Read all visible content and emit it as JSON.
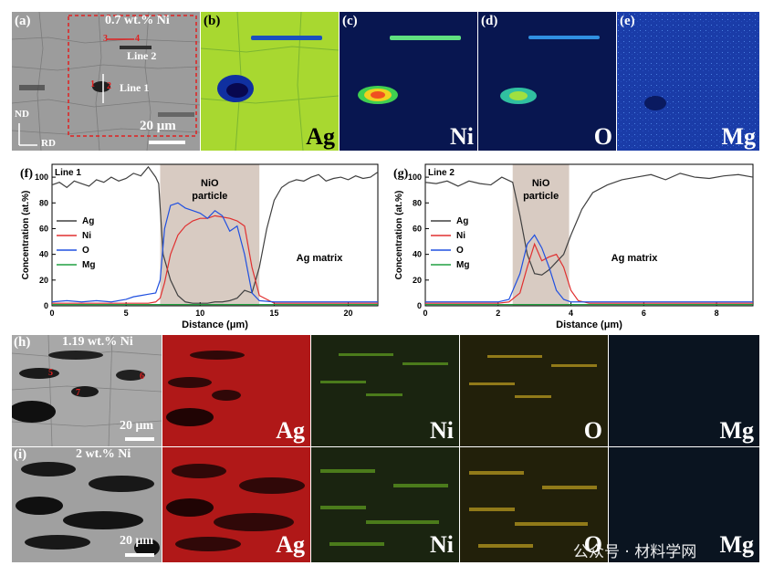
{
  "panel_a": {
    "label": "(a)",
    "composition": "0.7 wt.% Ni",
    "line1": "Line 1",
    "line2": "Line 2",
    "line2_markers": [
      "3",
      "4"
    ],
    "line1_markers": [
      "1",
      "2"
    ],
    "scalebar": "20 μm",
    "axis_nd": "ND",
    "axis_rd": "RD",
    "colors": {
      "bg": "#9c9c9c",
      "box": "#e02020"
    }
  },
  "panel_b": {
    "label": "(b)",
    "element": "Ag",
    "colors": {
      "bg": "#a8d830",
      "text": "#000000"
    }
  },
  "panel_c": {
    "label": "(c)",
    "element": "Ni",
    "colors": {
      "bg": "#081650",
      "text": "#ffffff"
    }
  },
  "panel_d": {
    "label": "(d)",
    "element": "O",
    "colors": {
      "bg": "#081650",
      "text": "#ffffff"
    }
  },
  "panel_e": {
    "label": "(e)",
    "element": "Mg",
    "colors": {
      "bg": "#1a3ca8",
      "text": "#ffffff"
    }
  },
  "panel_h": {
    "label": "(h)",
    "composition": "1.19 wt.% Ni",
    "markers": [
      "5",
      "6",
      "7"
    ],
    "scalebar": "20 μm",
    "maps": [
      "Ag",
      "Ni",
      "O",
      "Mg"
    ]
  },
  "panel_i": {
    "label": "(i)",
    "composition": "2 wt.% Ni",
    "scalebar": "20 μm",
    "maps": [
      "Ag",
      "Ni",
      "O",
      "Mg"
    ]
  },
  "map_colors": {
    "Ag": "#b01818",
    "Ni": "#2a3a10",
    "O": "#3a3008",
    "Mg": "#0a1420"
  },
  "watermark": "公众号 · 材料学网",
  "chart_data": [
    {
      "label": "(f)",
      "line_label": "Line 1",
      "type": "line",
      "xlabel": "Distance (μm)",
      "ylabel": "Concentration (at.%)",
      "xlim": [
        0,
        22
      ],
      "ylim": [
        0,
        110
      ],
      "xticks": [
        0,
        5,
        10,
        15,
        20
      ],
      "yticks": [
        0,
        20,
        40,
        60,
        80,
        100
      ],
      "legend": [
        "Ag",
        "Ni",
        "O",
        "Mg"
      ],
      "band": {
        "x0": 7.3,
        "x1": 14.0
      },
      "annotations": {
        "band": [
          "NiO",
          "particle"
        ],
        "matrix": "Ag matrix"
      },
      "series": [
        {
          "name": "Ag",
          "color": "#404040",
          "x": [
            0,
            0.5,
            1,
            1.5,
            2,
            2.5,
            3,
            3.5,
            4,
            4.5,
            5,
            5.5,
            6,
            6.5,
            7,
            7.2,
            7.5,
            8,
            8.5,
            9,
            9.5,
            10,
            10.5,
            11,
            11.5,
            12,
            12.5,
            13,
            13.5,
            14,
            14.5,
            15,
            15.5,
            16,
            16.5,
            17,
            17.5,
            18,
            18.5,
            19,
            19.5,
            20,
            20.5,
            21,
            21.5,
            22
          ],
          "y": [
            94,
            96,
            92,
            97,
            95,
            93,
            98,
            96,
            100,
            97,
            99,
            103,
            101,
            108,
            100,
            95,
            40,
            20,
            8,
            3,
            2,
            2,
            2,
            3,
            3,
            4,
            6,
            12,
            10,
            30,
            60,
            82,
            92,
            96,
            98,
            97,
            100,
            102,
            97,
            99,
            100,
            98,
            101,
            99,
            100,
            104
          ]
        },
        {
          "name": "Ni",
          "color": "#e03030",
          "x": [
            0,
            1,
            2,
            3,
            4,
            5,
            6,
            6.5,
            7,
            7.3,
            7.6,
            8,
            8.5,
            9,
            9.5,
            10,
            10.5,
            11,
            11.5,
            12,
            12.5,
            13,
            13.5,
            14,
            15,
            16,
            17,
            18,
            19,
            20,
            21,
            22
          ],
          "y": [
            2,
            2,
            2,
            2,
            2,
            2,
            2,
            2,
            3,
            6,
            18,
            40,
            55,
            62,
            66,
            68,
            68,
            70,
            69,
            68,
            66,
            62,
            30,
            8,
            2,
            2,
            2,
            2,
            2,
            2,
            2,
            2
          ]
        },
        {
          "name": "O",
          "color": "#2050e0",
          "x": [
            0,
            1,
            2,
            3,
            4,
            5,
            5.5,
            6,
            6.5,
            7,
            7.3,
            7.6,
            8,
            8.5,
            9,
            9.5,
            10,
            10.5,
            11,
            11.5,
            12,
            12.5,
            13,
            13.5,
            14,
            15,
            16,
            17,
            18,
            19,
            20,
            21,
            22
          ],
          "y": [
            3,
            4,
            3,
            4,
            3,
            5,
            7,
            8,
            9,
            10,
            20,
            60,
            78,
            80,
            76,
            74,
            72,
            68,
            74,
            70,
            58,
            62,
            40,
            10,
            4,
            3,
            3,
            3,
            3,
            3,
            3,
            3,
            3
          ]
        },
        {
          "name": "Mg",
          "color": "#20a040",
          "x": [
            0,
            2,
            4,
            6,
            8,
            10,
            12,
            14,
            16,
            18,
            20,
            22
          ],
          "y": [
            1,
            1,
            1,
            1,
            1,
            1,
            1,
            1,
            1,
            1,
            1,
            1
          ]
        }
      ]
    },
    {
      "label": "(g)",
      "line_label": "Line 2",
      "type": "line",
      "xlabel": "Distance (μm)",
      "ylabel": "Concentration (at.%)",
      "xlim": [
        0,
        9
      ],
      "ylim": [
        0,
        110
      ],
      "xticks": [
        0,
        2,
        4,
        6,
        8
      ],
      "yticks": [
        0,
        20,
        40,
        60,
        80,
        100
      ],
      "legend": [
        "Ag",
        "Ni",
        "O",
        "Mg"
      ],
      "band": {
        "x0": 2.4,
        "x1": 3.95
      },
      "annotations": {
        "band": [
          "NiO",
          "particle"
        ],
        "matrix": "Ag matrix"
      },
      "series": [
        {
          "name": "Ag",
          "color": "#404040",
          "x": [
            0,
            0.3,
            0.6,
            0.9,
            1.2,
            1.5,
            1.8,
            2.1,
            2.4,
            2.6,
            2.8,
            3.0,
            3.2,
            3.4,
            3.6,
            3.8,
            4.0,
            4.3,
            4.6,
            5.0,
            5.4,
            5.8,
            6.2,
            6.6,
            7.0,
            7.4,
            7.8,
            8.2,
            8.6,
            9.0
          ],
          "y": [
            96,
            95,
            97,
            93,
            97,
            95,
            94,
            100,
            96,
            70,
            40,
            25,
            24,
            28,
            34,
            40,
            55,
            75,
            88,
            94,
            98,
            100,
            102,
            98,
            103,
            100,
            99,
            101,
            102,
            100
          ]
        },
        {
          "name": "Ni",
          "color": "#e03030",
          "x": [
            0,
            0.5,
            1,
            1.5,
            2,
            2.3,
            2.6,
            2.8,
            3.0,
            3.2,
            3.4,
            3.6,
            3.8,
            4.0,
            4.2,
            4.5,
            5,
            6,
            7,
            8,
            9
          ],
          "y": [
            2,
            2,
            2,
            2,
            2,
            3,
            10,
            30,
            48,
            35,
            38,
            40,
            30,
            12,
            4,
            2,
            2,
            2,
            2,
            2,
            2
          ]
        },
        {
          "name": "O",
          "color": "#2050e0",
          "x": [
            0,
            0.5,
            1,
            1.5,
            2,
            2.3,
            2.6,
            2.8,
            3.0,
            3.2,
            3.4,
            3.6,
            3.8,
            4.0,
            4.3,
            5,
            6,
            7,
            8,
            9
          ],
          "y": [
            3,
            3,
            3,
            3,
            3,
            5,
            25,
            48,
            55,
            45,
            30,
            12,
            5,
            3,
            3,
            3,
            3,
            3,
            3,
            3
          ]
        },
        {
          "name": "Mg",
          "color": "#20a040",
          "x": [
            0,
            1,
            2,
            3,
            4,
            5,
            6,
            7,
            8,
            9
          ],
          "y": [
            1,
            1,
            1,
            1,
            1,
            1,
            1,
            1,
            1,
            1
          ]
        }
      ]
    }
  ]
}
